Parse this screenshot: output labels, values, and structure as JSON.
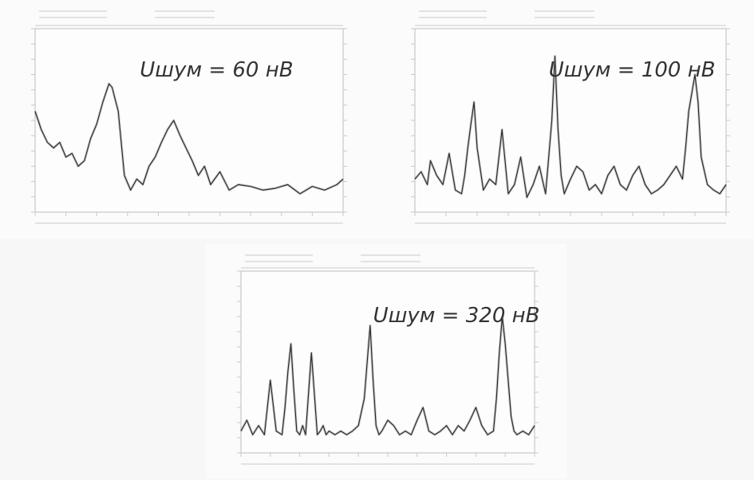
{
  "chart_data": [
    {
      "type": "line",
      "annotation": "Uшум = 60 нВ",
      "ylim": [
        0,
        100
      ],
      "xlim": [
        0,
        100
      ],
      "grid": false,
      "series": [
        {
          "x": [
            0,
            2,
            4,
            6,
            8,
            10,
            12,
            14,
            16,
            18,
            20,
            22,
            24,
            25,
            27,
            29,
            31,
            33,
            35,
            37,
            39,
            41,
            43,
            45,
            47,
            49,
            51,
            53,
            55,
            57,
            60,
            63,
            66,
            70,
            74,
            78,
            82,
            86,
            90,
            94,
            98,
            100
          ],
          "values": [
            55,
            45,
            38,
            35,
            38,
            30,
            32,
            25,
            28,
            40,
            48,
            60,
            70,
            68,
            55,
            20,
            12,
            18,
            15,
            25,
            30,
            38,
            45,
            50,
            42,
            35,
            28,
            20,
            25,
            15,
            22,
            12,
            15,
            14,
            12,
            13,
            15,
            10,
            14,
            12,
            15,
            18
          ]
        }
      ]
    },
    {
      "type": "line",
      "annotation": "Uшум = 100 нВ",
      "ylim": [
        0,
        100
      ],
      "xlim": [
        0,
        100
      ],
      "grid": false,
      "series": [
        {
          "x": [
            0,
            2,
            4,
            5,
            7,
            9,
            11,
            13,
            15,
            16,
            17,
            18,
            19,
            20,
            22,
            24,
            26,
            28,
            30,
            32,
            34,
            36,
            38,
            40,
            42,
            43,
            44,
            45,
            46,
            47,
            48,
            50,
            52,
            54,
            56,
            58,
            60,
            62,
            64,
            66,
            68,
            70,
            72,
            74,
            76,
            78,
            80,
            82,
            84,
            86,
            87,
            88,
            89,
            90,
            91,
            92,
            94,
            96,
            98,
            100
          ],
          "values": [
            18,
            22,
            15,
            28,
            20,
            15,
            32,
            12,
            10,
            20,
            35,
            48,
            60,
            35,
            12,
            18,
            15,
            45,
            10,
            15,
            30,
            8,
            15,
            25,
            10,
            30,
            50,
            85,
            45,
            20,
            10,
            18,
            25,
            22,
            12,
            15,
            10,
            20,
            25,
            15,
            12,
            20,
            25,
            15,
            10,
            12,
            15,
            20,
            25,
            18,
            35,
            55,
            65,
            75,
            60,
            30,
            15,
            12,
            10,
            15
          ]
        }
      ]
    },
    {
      "type": "line",
      "annotation": "Uшум = 320 нВ",
      "ylim": [
        0,
        100
      ],
      "xlim": [
        0,
        100
      ],
      "grid": false,
      "series": [
        {
          "x": [
            0,
            2,
            4,
            6,
            8,
            10,
            12,
            14,
            15,
            16,
            17,
            18,
            19,
            20,
            21,
            22,
            24,
            26,
            27,
            28,
            29,
            30,
            32,
            34,
            36,
            38,
            40,
            42,
            43,
            44,
            45,
            46,
            47,
            48,
            50,
            52,
            54,
            56,
            58,
            60,
            62,
            64,
            66,
            68,
            70,
            72,
            74,
            76,
            78,
            80,
            82,
            84,
            86,
            87,
            88,
            89,
            90,
            91,
            92,
            93,
            94,
            96,
            98,
            100
          ],
          "values": [
            12,
            18,
            10,
            15,
            10,
            40,
            12,
            10,
            25,
            45,
            60,
            35,
            12,
            10,
            15,
            10,
            55,
            10,
            12,
            15,
            10,
            12,
            10,
            12,
            10,
            12,
            15,
            30,
            50,
            70,
            40,
            15,
            10,
            12,
            18,
            15,
            10,
            12,
            10,
            18,
            25,
            12,
            10,
            12,
            15,
            10,
            15,
            12,
            18,
            25,
            15,
            10,
            12,
            30,
            55,
            75,
            60,
            40,
            20,
            12,
            10,
            12,
            10,
            15
          ]
        }
      ]
    }
  ]
}
